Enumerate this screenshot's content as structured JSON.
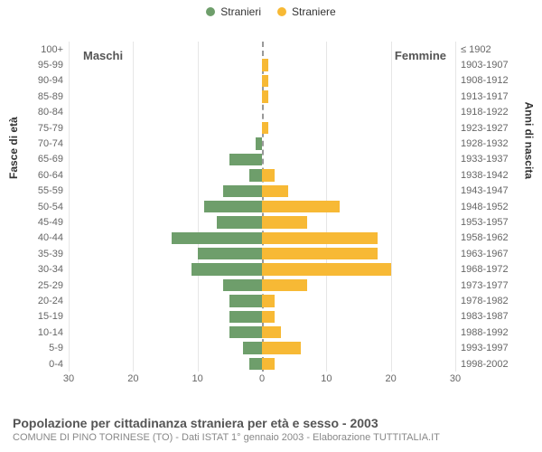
{
  "legend": {
    "male_label": "Stranieri",
    "female_label": "Straniere",
    "male_color": "#6e9e6b",
    "female_color": "#f7b935"
  },
  "side_titles": {
    "left": "Maschi",
    "right": "Femmine"
  },
  "axis_labels": {
    "left": "Fasce di età",
    "right": "Anni di nascita"
  },
  "x_axis": {
    "max": 30,
    "ticks": [
      30,
      20,
      10,
      0,
      10,
      20,
      30
    ]
  },
  "rows": [
    {
      "age": "100+",
      "year": "≤ 1902",
      "m": 0,
      "f": 0
    },
    {
      "age": "95-99",
      "year": "1903-1907",
      "m": 0,
      "f": 1
    },
    {
      "age": "90-94",
      "year": "1908-1912",
      "m": 0,
      "f": 1
    },
    {
      "age": "85-89",
      "year": "1913-1917",
      "m": 0,
      "f": 1
    },
    {
      "age": "80-84",
      "year": "1918-1922",
      "m": 0,
      "f": 0
    },
    {
      "age": "75-79",
      "year": "1923-1927",
      "m": 0,
      "f": 1
    },
    {
      "age": "70-74",
      "year": "1928-1932",
      "m": 1,
      "f": 0
    },
    {
      "age": "65-69",
      "year": "1933-1937",
      "m": 5,
      "f": 0
    },
    {
      "age": "60-64",
      "year": "1938-1942",
      "m": 2,
      "f": 2
    },
    {
      "age": "55-59",
      "year": "1943-1947",
      "m": 6,
      "f": 4
    },
    {
      "age": "50-54",
      "year": "1948-1952",
      "m": 9,
      "f": 12
    },
    {
      "age": "45-49",
      "year": "1953-1957",
      "m": 7,
      "f": 7
    },
    {
      "age": "40-44",
      "year": "1958-1962",
      "m": 14,
      "f": 18
    },
    {
      "age": "35-39",
      "year": "1963-1967",
      "m": 10,
      "f": 18
    },
    {
      "age": "30-34",
      "year": "1968-1972",
      "m": 11,
      "f": 20
    },
    {
      "age": "25-29",
      "year": "1973-1977",
      "m": 6,
      "f": 7
    },
    {
      "age": "20-24",
      "year": "1978-1982",
      "m": 5,
      "f": 2
    },
    {
      "age": "15-19",
      "year": "1983-1987",
      "m": 5,
      "f": 2
    },
    {
      "age": "10-14",
      "year": "1988-1992",
      "m": 5,
      "f": 3
    },
    {
      "age": "5-9",
      "year": "1993-1997",
      "m": 3,
      "f": 6
    },
    {
      "age": "0-4",
      "year": "1998-2002",
      "m": 2,
      "f": 2
    }
  ],
  "colors": {
    "male_bar": "#6e9e6b",
    "female_bar": "#f7b935",
    "grid": "#e6e6e6",
    "center_dash": "#999999"
  },
  "footer": {
    "title": "Popolazione per cittadinanza straniera per età e sesso - 2003",
    "subtitle": "COMUNE DI PINO TORINESE (TO) - Dati ISTAT 1° gennaio 2003 - Elaborazione TUTTITALIA.IT"
  }
}
